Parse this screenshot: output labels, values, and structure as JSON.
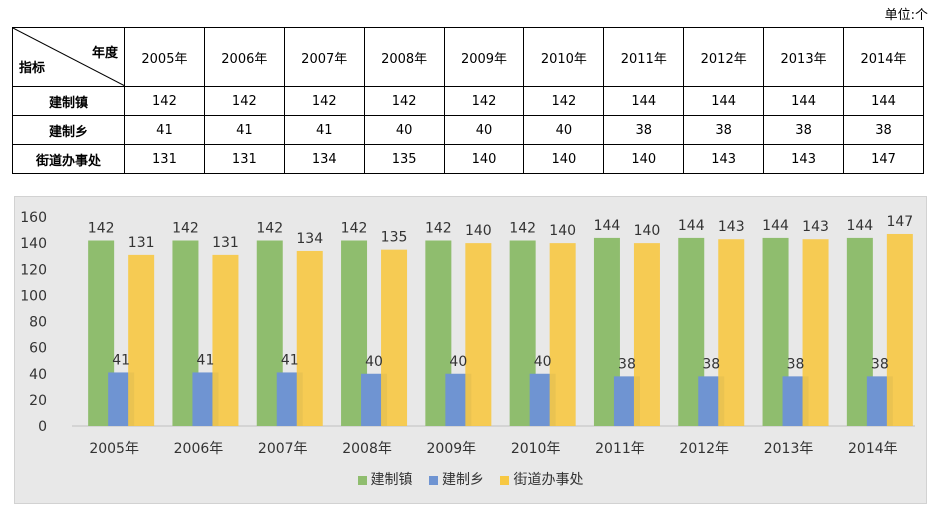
{
  "unit_label": "单位:个",
  "table": {
    "corner_top": "年度",
    "corner_bottom": "指标",
    "years": [
      "2005年",
      "2006年",
      "2007年",
      "2008年",
      "2009年",
      "2010年",
      "2011年",
      "2012年",
      "2013年",
      "2014年"
    ],
    "rows": [
      {
        "label": "建制镇",
        "values": [
          "142",
          "142",
          "142",
          "142",
          "142",
          "142",
          "144",
          "144",
          "144",
          "144"
        ]
      },
      {
        "label": "建制乡",
        "values": [
          "41",
          "41",
          "41",
          "40",
          "40",
          "40",
          "38",
          "38",
          "38",
          "38"
        ]
      },
      {
        "label": "街道办事处",
        "values": [
          "131",
          "131",
          "134",
          "135",
          "140",
          "140",
          "140",
          "143",
          "143",
          "147"
        ]
      }
    ]
  },
  "chart_data": {
    "type": "bar",
    "categories": [
      "2005年",
      "2006年",
      "2007年",
      "2008年",
      "2009年",
      "2010年",
      "2011年",
      "2012年",
      "2013年",
      "2014年"
    ],
    "series": [
      {
        "name": "建制镇",
        "values": [
          142,
          142,
          142,
          142,
          142,
          142,
          144,
          144,
          144,
          144
        ],
        "color": "#8fbd6e"
      },
      {
        "name": "建制乡",
        "values": [
          41,
          41,
          41,
          40,
          40,
          40,
          38,
          38,
          38,
          38
        ],
        "color": "#6f94d2"
      },
      {
        "name": "街道办事处",
        "values": [
          131,
          131,
          134,
          135,
          140,
          140,
          140,
          143,
          143,
          147
        ],
        "color": "#f7c843"
      }
    ],
    "ylim": [
      0,
      160
    ],
    "yticks": [
      0,
      20,
      40,
      60,
      80,
      100,
      120,
      140,
      160
    ],
    "legend_position": "bottom",
    "grid": false
  }
}
